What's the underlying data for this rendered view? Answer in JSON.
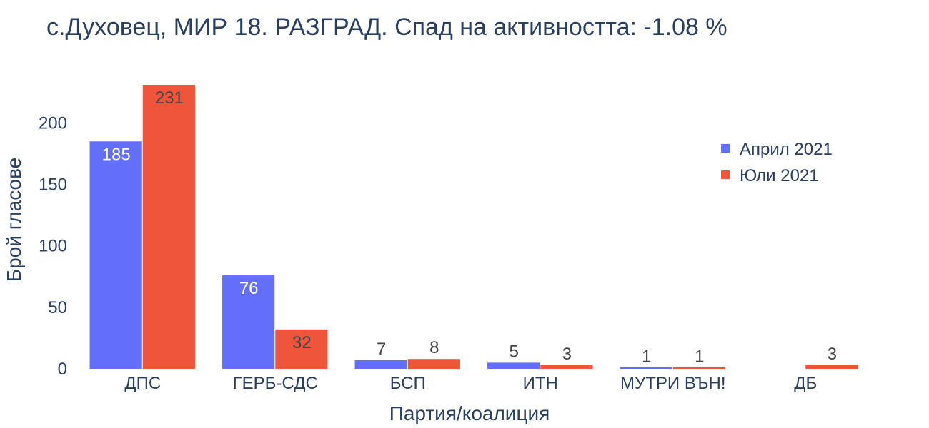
{
  "chart_data": {
    "type": "bar",
    "title": "с.Духовец, МИР 18. РАЗГРАД. Спад на активността: -1.08 %",
    "xlabel": "Партия/коалиция",
    "ylabel": "Брой гласове",
    "categories": [
      "ДПС",
      "ГЕРБ-СДС",
      "БСП",
      "ИТН",
      "МУТРИ ВЪН!",
      "ДБ"
    ],
    "ylim": [
      0,
      231
    ],
    "yticks": [
      "0",
      "50",
      "100",
      "150",
      "200"
    ],
    "series": [
      {
        "name": "Април 2021",
        "color": "#636efa",
        "values": [
          185,
          76,
          7,
          5,
          1,
          null
        ],
        "labels": [
          "185",
          "76",
          "7",
          "5",
          "1",
          ""
        ]
      },
      {
        "name": "Юли 2021",
        "color": "#ef553b",
        "values": [
          231,
          32,
          8,
          3,
          1,
          3
        ],
        "labels": [
          "231",
          "32",
          "8",
          "3",
          "1",
          "3"
        ]
      }
    ],
    "legend_position": "right",
    "grid": false
  }
}
